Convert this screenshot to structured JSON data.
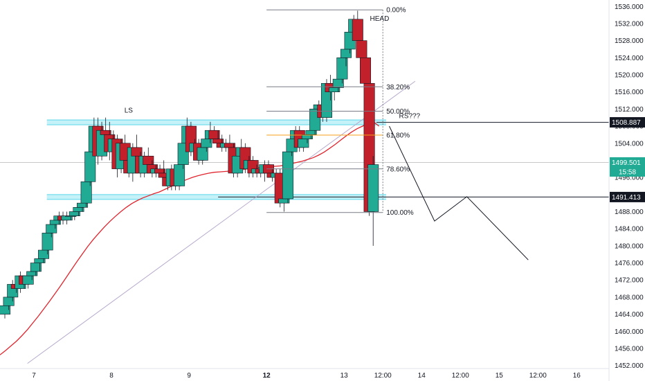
{
  "chart_data": {
    "type": "candlestick",
    "x_ticks": [
      {
        "label": "7",
        "x": 0
      },
      {
        "label": "8",
        "x": 24
      },
      {
        "label": "9",
        "x": 48
      },
      {
        "label": "12",
        "x": 72
      },
      {
        "label": "13",
        "x": 96
      },
      {
        "label": "12:00",
        "x": 108
      },
      {
        "label": "14",
        "x": 120
      },
      {
        "label": "12:00",
        "x": 132
      },
      {
        "label": "15",
        "x": 144
      },
      {
        "label": "12:00",
        "x": 156
      },
      {
        "label": "16",
        "x": 168
      }
    ],
    "x_range": [
      -10.5,
      178
    ],
    "y_ticks": [
      1536,
      1532,
      1528,
      1524,
      1520,
      1516,
      1512,
      1508,
      1504,
      1500,
      1496,
      1492,
      1488,
      1484,
      1480,
      1476,
      1472,
      1468,
      1464,
      1460,
      1456,
      1452
    ],
    "y_tick_labels": [
      "1536.000",
      "1532.000",
      "1528.000",
      "1524.000",
      "1520.000",
      "1516.000",
      "1512.000",
      "1508.000",
      "1504.000",
      "1500.000",
      "1496.000",
      "1492.000",
      "1488.000",
      "1484.000",
      "1480.000",
      "1476.000",
      "1472.000",
      "1468.000",
      "1464.000",
      "1460.000",
      "1456.000",
      "1452.000"
    ],
    "y_range": [
      1451.3,
      1537.5
    ],
    "candles_ohlc": [
      [
        1464,
        1467,
        1463,
        1466
      ],
      [
        1466,
        1469,
        1465,
        1468
      ],
      [
        1468,
        1472,
        1467,
        1471
      ],
      [
        1471,
        1472,
        1469,
        1470
      ],
      [
        1470,
        1474,
        1469,
        1473
      ],
      [
        1473,
        1473,
        1470,
        1471
      ],
      [
        1471,
        1474,
        1470,
        1473
      ],
      [
        1473,
        1475,
        1472,
        1474
      ],
      [
        1474,
        1477,
        1473,
        1476
      ],
      [
        1476,
        1478,
        1474,
        1477
      ],
      [
        1477,
        1480,
        1476,
        1479
      ],
      [
        1479,
        1484,
        1478,
        1483
      ],
      [
        1483,
        1486,
        1482,
        1485
      ],
      [
        1485,
        1487,
        1484,
        1486
      ],
      [
        1486,
        1488,
        1485,
        1487
      ],
      [
        1487,
        1488,
        1485,
        1486
      ],
      [
        1486,
        1488,
        1485,
        1487
      ],
      [
        1487,
        1488,
        1486,
        1487
      ],
      [
        1487,
        1489,
        1486,
        1488
      ],
      [
        1488,
        1490,
        1487,
        1489
      ],
      [
        1489,
        1491,
        1488,
        1490
      ],
      [
        1490,
        1496,
        1489,
        1495
      ],
      [
        1495,
        1503,
        1494,
        1502
      ],
      [
        1502,
        1510,
        1501,
        1508
      ],
      [
        1508,
        1510,
        1499,
        1501
      ],
      [
        1501,
        1509,
        1500,
        1507
      ],
      [
        1507,
        1510,
        1504,
        1506
      ],
      [
        1506,
        1509,
        1500,
        1502
      ],
      [
        1502,
        1507,
        1501,
        1505
      ],
      [
        1505,
        1506,
        1496,
        1498
      ],
      [
        1498,
        1505,
        1497,
        1504
      ],
      [
        1504,
        1506,
        1499,
        1500
      ],
      [
        1500,
        1503,
        1496,
        1497
      ],
      [
        1497,
        1504,
        1495,
        1503
      ],
      [
        1503,
        1506,
        1499,
        1501
      ],
      [
        1501,
        1502,
        1496,
        1497
      ],
      [
        1497,
        1502,
        1496,
        1501
      ],
      [
        1501,
        1503,
        1498,
        1499
      ],
      [
        1499,
        1500,
        1496,
        1497
      ],
      [
        1497,
        1499,
        1496,
        1498
      ],
      [
        1498,
        1499,
        1496,
        1497
      ],
      [
        1497,
        1500,
        1495,
        1496
      ],
      [
        1496,
        1498,
        1493,
        1494
      ],
      [
        1494,
        1499,
        1493,
        1498
      ],
      [
        1498,
        1498,
        1493,
        1494
      ],
      [
        1494,
        1500,
        1493,
        1499
      ],
      [
        1499,
        1505,
        1498,
        1504
      ],
      [
        1504,
        1510,
        1503,
        1508
      ],
      [
        1508,
        1509,
        1501,
        1502
      ],
      [
        1502,
        1505,
        1500,
        1504
      ],
      [
        1504,
        1505,
        1499,
        1500
      ],
      [
        1500,
        1504,
        1499,
        1503
      ],
      [
        1503,
        1506,
        1502,
        1505
      ],
      [
        1505,
        1509,
        1504,
        1507
      ],
      [
        1507,
        1508,
        1504,
        1505
      ],
      [
        1505,
        1507,
        1503,
        1504
      ],
      [
        1504,
        1506,
        1502,
        1503
      ],
      [
        1503,
        1505,
        1502,
        1504
      ],
      [
        1504,
        1506,
        1502,
        1503
      ],
      [
        1503,
        1504,
        1496,
        1497
      ],
      [
        1497,
        1502,
        1496,
        1501
      ],
      [
        1501,
        1505,
        1500,
        1503
      ],
      [
        1503,
        1504,
        1497,
        1498
      ],
      [
        1498,
        1501,
        1496,
        1500
      ],
      [
        1500,
        1501,
        1496,
        1497
      ],
      [
        1497,
        1499,
        1496,
        1498
      ],
      [
        1498,
        1499,
        1496,
        1497
      ],
      [
        1497,
        1500,
        1495,
        1499
      ],
      [
        1499,
        1500,
        1496,
        1497
      ],
      [
        1497,
        1498,
        1495,
        1496
      ],
      [
        1496,
        1498,
        1494,
        1497
      ],
      [
        1497,
        1498,
        1489,
        1490
      ],
      [
        1490,
        1492,
        1488,
        1491
      ],
      [
        1491,
        1503,
        1490,
        1502
      ],
      [
        1502,
        1506,
        1501,
        1505
      ],
      [
        1505,
        1508,
        1504,
        1507
      ],
      [
        1507,
        1508,
        1502,
        1503
      ],
      [
        1503,
        1506,
        1502,
        1505
      ],
      [
        1505,
        1507,
        1504,
        1506
      ],
      [
        1506,
        1508,
        1505,
        1507
      ],
      [
        1507,
        1513,
        1506,
        1512
      ],
      [
        1512,
        1514,
        1510,
        1513
      ],
      [
        1513,
        1514,
        1509,
        1510
      ],
      [
        1510,
        1519,
        1509,
        1518
      ],
      [
        1518,
        1520,
        1514,
        1516
      ],
      [
        1516,
        1518,
        1514,
        1517
      ],
      [
        1517,
        1520,
        1516,
        1519
      ],
      [
        1519,
        1525,
        1518,
        1524
      ],
      [
        1524,
        1527,
        1522,
        1526
      ],
      [
        1526,
        1531,
        1525,
        1530
      ],
      [
        1530,
        1534,
        1529,
        1533
      ],
      [
        1533,
        1535,
        1527,
        1528
      ],
      [
        1528,
        1528,
        1522,
        1524
      ],
      [
        1524,
        1524,
        1516,
        1518
      ],
      [
        1518,
        1518,
        1487,
        1488
      ],
      [
        1488,
        1501,
        1480,
        1499
      ]
    ],
    "ema_values": [
      1454.5,
      1455.5,
      1456.6,
      1457.7,
      1459.0,
      1460.4,
      1462.0,
      1463.6,
      1465.3,
      1467.0,
      1468.8,
      1470.6,
      1472.5,
      1474.4,
      1476.3,
      1478.1,
      1479.9,
      1481.5,
      1483.0,
      1484.4,
      1485.7,
      1486.9,
      1488.0,
      1489.0,
      1489.9,
      1490.6,
      1491.2,
      1491.7,
      1492.2,
      1492.6,
      1493.2,
      1493.8,
      1494.4,
      1495.0,
      1495.5,
      1496.0,
      1496.4,
      1496.7,
      1497.0,
      1497.2,
      1497.3,
      1497.4,
      1497.5,
      1497.6,
      1497.8,
      1498.0,
      1498.2,
      1498.3,
      1498.4,
      1498.5,
      1498.6,
      1498.7,
      1498.9,
      1499.2,
      1499.5,
      1499.8,
      1500.2,
      1500.6,
      1501.2,
      1501.9,
      1502.8,
      1503.7,
      1504.7,
      1505.7,
      1506.6,
      1507.4,
      1508.0,
      1508.6,
      1509.0,
      1508.0
    ],
    "ema_start_x": -10.5,
    "ema_step": 1.7,
    "fib": {
      "x_start": 72,
      "x_end": 108,
      "levels": [
        {
          "label": "0.00%",
          "value": 1535.2,
          "color": "#787b86"
        },
        {
          "label": "38.20%",
          "value": 1517.2,
          "color": "#787b86"
        },
        {
          "label": "50.00%",
          "value": 1511.5,
          "color": "#787b86"
        },
        {
          "label": "61.80%",
          "value": 1505.9,
          "color": "#f7a21b"
        },
        {
          "label": "78.60%",
          "value": 1498.0,
          "color": "#787b86"
        },
        {
          "label": "100.00%",
          "value": 1487.8,
          "color": "#787b86"
        }
      ]
    },
    "zones": [
      {
        "value": 1508.887
      },
      {
        "value": 1491.413
      }
    ],
    "hlines": [
      {
        "value": 1508.887,
        "label": "1508.887",
        "badge_color": "#131722",
        "text_color": "#ffffff",
        "x_start": 106
      },
      {
        "value": 1491.413,
        "label": "1491.413",
        "badge_color": "#131722",
        "text_color": "#ffffff",
        "x_start": 57
      }
    ],
    "current_price": {
      "value": 1499.501,
      "label": "1499.501",
      "countdown": "15:58",
      "badge_color": "#22ab94"
    },
    "trendline": {
      "x1": -2,
      "y1": 1452.5,
      "x2": 118,
      "y2": 1518.5
    },
    "projection": [
      [
        110,
        1508.0
      ],
      [
        124,
        1485.8
      ],
      [
        134,
        1491.5
      ],
      [
        153,
        1476.7
      ]
    ],
    "annotations": [
      {
        "text": "LS",
        "x": 28,
        "y": 1511.2
      },
      {
        "text": "HEAD",
        "x": 104,
        "y": 1532.6
      },
      {
        "text": "RS???",
        "x": 113,
        "y": 1509.9
      }
    ],
    "colors": {
      "up": "#22ab94",
      "down": "#c2202a",
      "ema": "#e0242d",
      "zone": "#5ad7ea",
      "trend": "#b7a9cc",
      "proj": "#131722"
    }
  }
}
